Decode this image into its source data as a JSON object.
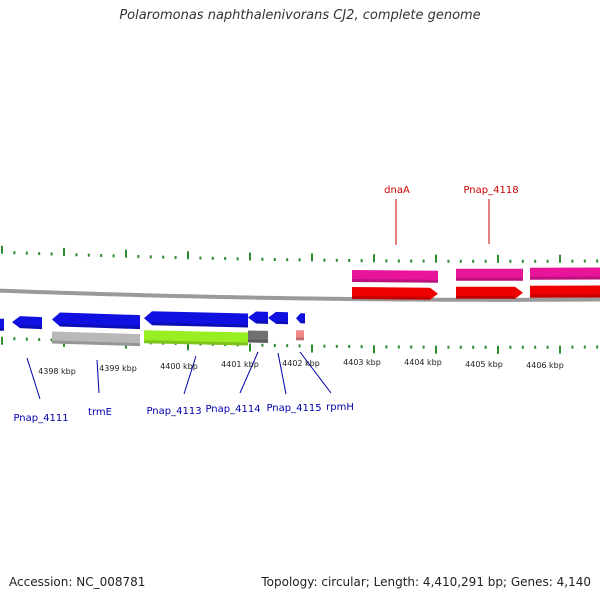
{
  "header": {
    "title": "Polaromonas naphthalenivorans CJ2, complete genome"
  },
  "footer": {
    "accession": "Accession: NC_008781",
    "summary": "Topology: circular; Length: 4,410,291 bp; Genes: 4,140"
  },
  "colors": {
    "blue_gene": "#1010e0",
    "red_gene": "#ee0000",
    "pink_gene": "#e8159a",
    "lime_gene": "#99ee22",
    "gray_gene": "#b8b8b8",
    "dark_gray_gene": "#707070",
    "rna_gene": "#f08888",
    "tick_green": "#2e8b2e",
    "backbone": "#9a9a9a",
    "label_blue": "#0000aa",
    "label_red": "#cc0000"
  },
  "scale_labels": [
    "4398 kbp",
    "4399 kbp",
    "4400 kbp",
    "4401 kbp",
    "4402 kbp",
    "4403 kbp",
    "4404 kbp",
    "4405 kbp",
    "4406 kbp"
  ],
  "top_labels": [
    {
      "text": "dnaA",
      "color": "red"
    },
    {
      "text": "Pnap_4118",
      "color": "red"
    }
  ],
  "bottom_labels": [
    {
      "text": "Pnap_4111",
      "color": "blue"
    },
    {
      "text": "trmE",
      "color": "blue"
    },
    {
      "text": "Pnap_4113",
      "color": "blue"
    },
    {
      "text": "Pnap_4114",
      "color": "blue"
    },
    {
      "text": "Pnap_4115",
      "color": "blue"
    },
    {
      "text": "rpmH",
      "color": "blue"
    }
  ]
}
